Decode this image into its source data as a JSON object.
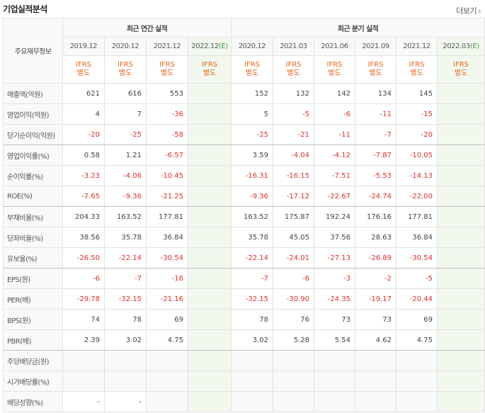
{
  "header": {
    "title": "기업실적분석",
    "more_label": "더보기"
  },
  "table": {
    "corner_label": "주요재무정보",
    "group_annual": "최근 연간 실적",
    "group_quarterly": "최근 분기 실적",
    "annual_periods": [
      "2019.12",
      "2020.12",
      "2021.12",
      "2022.12"
    ],
    "annual_est_mark": "(E)",
    "quarter_periods": [
      "2020.12",
      "2021.03",
      "2021.06",
      "2021.09",
      "2021.12",
      "2022.03"
    ],
    "quarter_est_mark": "(E)",
    "ifrs_top": "IFRS",
    "ifrs_bottom": "별도",
    "rows": [
      {
        "label": "매출액(억원)",
        "vals": [
          "621",
          "616",
          "553",
          "",
          "152",
          "132",
          "142",
          "134",
          "145",
          ""
        ]
      },
      {
        "label": "영업이익(억원)",
        "vals": [
          "4",
          "7",
          "-36",
          "",
          "5",
          "-5",
          "-6",
          "-11",
          "-15",
          ""
        ]
      },
      {
        "label": "당기순이익(억원)",
        "vals": [
          "-20",
          "-25",
          "-58",
          "",
          "-25",
          "-21",
          "-11",
          "-7",
          "-20",
          ""
        ]
      },
      {
        "label": "영업이익률(%)",
        "vals": [
          "0.58",
          "1.21",
          "-6.57",
          "",
          "3.59",
          "-4.04",
          "-4.12",
          "-7.87",
          "-10.05",
          ""
        ]
      },
      {
        "label": "순이익률(%)",
        "vals": [
          "-3.23",
          "-4.06",
          "-10.45",
          "",
          "-16.31",
          "-16.15",
          "-7.51",
          "-5.53",
          "-14.13",
          ""
        ]
      },
      {
        "label": "ROE(%)",
        "vals": [
          "-7.65",
          "-9.36",
          "-21.25",
          "",
          "-9.36",
          "-17.12",
          "-22.67",
          "-24.74",
          "-22.00",
          ""
        ]
      },
      {
        "label": "부채비율(%)",
        "vals": [
          "204.33",
          "163.52",
          "177.81",
          "",
          "163.52",
          "175.87",
          "192.24",
          "176.16",
          "177.81",
          ""
        ]
      },
      {
        "label": "당좌비율(%)",
        "vals": [
          "38.56",
          "35.78",
          "36.84",
          "",
          "35.78",
          "45.05",
          "37.56",
          "28.63",
          "36.84",
          ""
        ]
      },
      {
        "label": "유보율(%)",
        "vals": [
          "-26.50",
          "-22.14",
          "-30.54",
          "",
          "-22.14",
          "-24.01",
          "-27.13",
          "-26.89",
          "-30.54",
          ""
        ]
      },
      {
        "label": "EPS(원)",
        "vals": [
          "-6",
          "-7",
          "-16",
          "",
          "-7",
          "-6",
          "-3",
          "-2",
          "-5",
          ""
        ]
      },
      {
        "label": "PER(배)",
        "vals": [
          "-29.78",
          "-32.15",
          "-21.16",
          "",
          "-32.15",
          "-30.90",
          "-24.35",
          "-19.17",
          "-20.44",
          ""
        ]
      },
      {
        "label": "BPS(원)",
        "vals": [
          "74",
          "78",
          "69",
          "",
          "78",
          "76",
          "73",
          "73",
          "69",
          ""
        ]
      },
      {
        "label": "PBR(배)",
        "vals": [
          "2.39",
          "3.02",
          "4.75",
          "",
          "3.02",
          "5.28",
          "5.54",
          "4.62",
          "4.75",
          ""
        ]
      },
      {
        "label": "주당배당금(원)",
        "vals": [
          "",
          "",
          "",
          "",
          "",
          "",
          "",
          "",
          "",
          ""
        ]
      },
      {
        "label": "시가배당률(%)",
        "vals": [
          "",
          "",
          "",
          "",
          "",
          "",
          "",
          "",
          "",
          ""
        ]
      },
      {
        "label": "배당성향(%)",
        "vals": [
          "-",
          "-",
          "",
          "",
          "",
          "",
          "",
          "",
          "",
          ""
        ]
      }
    ],
    "group_end_rows": [
      2,
      5,
      8,
      12
    ],
    "colors": {
      "negative": "#e0302c",
      "ifrs": "#e8651a",
      "estimate_bg": "#f2f8ee",
      "estimate_mark": "#4aa04a"
    }
  }
}
